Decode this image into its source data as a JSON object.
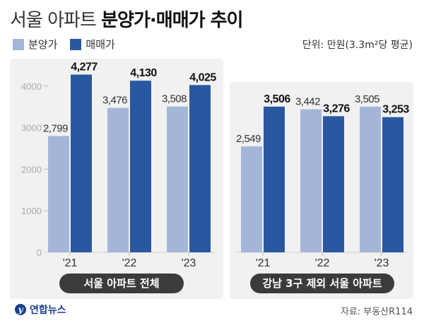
{
  "title": {
    "light": "서울 아파트 ",
    "bold": "분양가·매매가 추이"
  },
  "unit": "단위: 만원(3.3m²당 평균)",
  "logo": "연합뉴스",
  "source": "자료: 부동산R114",
  "colors": {
    "presale": "#a4b6d8",
    "sale": "#2a58a0",
    "panel": "#f1f1f1",
    "pill": "#3b3b3b"
  },
  "chart_data": [
    {
      "type": "bar",
      "title": "서울 아파트 전체",
      "categories": [
        "'21",
        "'22",
        "'23"
      ],
      "series": [
        {
          "name": "분양가",
          "values": [
            2799,
            3476,
            3508
          ],
          "labels": [
            "2,799",
            "3,476",
            "3,508"
          ]
        },
        {
          "name": "매매가",
          "values": [
            4277,
            4130,
            4025
          ],
          "labels": [
            "4,277",
            "4,130",
            "4,025"
          ]
        }
      ],
      "yticks": [
        0,
        1000,
        2000,
        3000,
        4000
      ],
      "ytick_labels": [
        "0",
        "1000",
        "2000",
        "3000",
        "4000"
      ],
      "ylim": [
        0,
        4700
      ],
      "legend": "top-left"
    },
    {
      "type": "bar",
      "title": "강남 3구 제외 서울 아파트",
      "categories": [
        "'21",
        "'22",
        "'23"
      ],
      "series": [
        {
          "name": "분양가",
          "values": [
            2549,
            3442,
            3505
          ],
          "labels": [
            "2,549",
            "3,442",
            "3,505"
          ]
        },
        {
          "name": "매매가",
          "values": [
            3506,
            3276,
            3253
          ],
          "labels": [
            "3,506",
            "3,276",
            "3,253"
          ]
        }
      ],
      "ylim": [
        0,
        4700
      ]
    }
  ]
}
